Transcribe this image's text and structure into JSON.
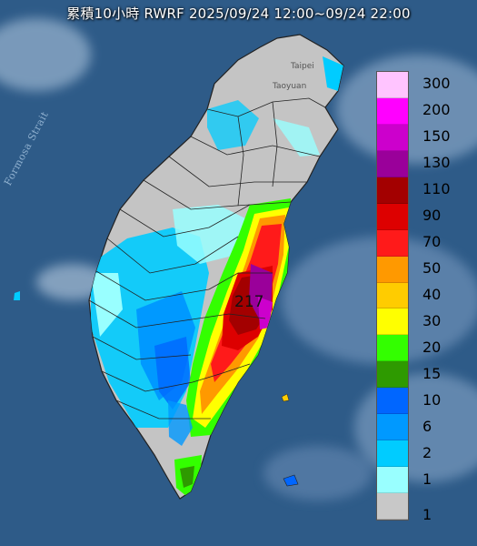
{
  "title": "累積10小時 RWRF 2025/09/24 12:00~09/24 22:00",
  "max_value": "217",
  "place_labels": {
    "strait": "Formosa Strait",
    "taipei": "Taipei",
    "taoyuan": "Taoyuan"
  },
  "legend": {
    "items": [
      {
        "label": "300",
        "color": "#ffc4ff"
      },
      {
        "label": "200",
        "color": "#ff00ff"
      },
      {
        "label": "150",
        "color": "#cc00cc"
      },
      {
        "label": "130",
        "color": "#9a009a"
      },
      {
        "label": "110",
        "color": "#a30000"
      },
      {
        "label": "90",
        "color": "#dd0000"
      },
      {
        "label": "70",
        "color": "#ff1a1a"
      },
      {
        "label": "50",
        "color": "#ff9900"
      },
      {
        "label": "40",
        "color": "#ffcc00"
      },
      {
        "label": "30",
        "color": "#ffff00"
      },
      {
        "label": "20",
        "color": "#33ff00"
      },
      {
        "label": "15",
        "color": "#2e9a00"
      },
      {
        "label": "10",
        "color": "#0066ff"
      },
      {
        "label": "6",
        "color": "#0099ff"
      },
      {
        "label": "2",
        "color": "#00ccff"
      },
      {
        "label": "1",
        "color": "#99ffff"
      },
      {
        "label": "",
        "color": "#c8c8c8"
      }
    ],
    "bottom_label": "1"
  }
}
